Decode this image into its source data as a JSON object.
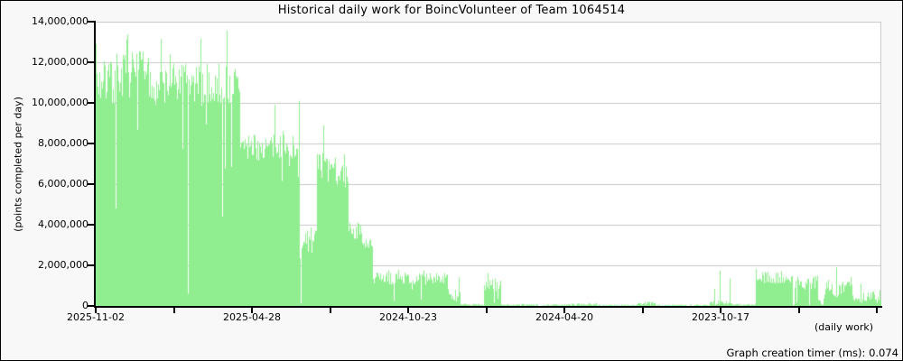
{
  "page": {
    "footer_timer": "Graph creation timer (ms): 0.074"
  },
  "chart_data": {
    "type": "bar",
    "title": "Historical daily work for BoincVolunteer of Team 1064514",
    "ylabel": "(points completed per day)",
    "xlabel": "(daily work)",
    "unit": "points completed per day",
    "ylim": [
      0,
      14000000
    ],
    "grid": true,
    "bar_color": "#90ee90",
    "grid_color": "#c8c8c8",
    "axis_color": "#000000",
    "plot_bg": "#ffffff",
    "outer_bg": "#f8f8f8",
    "x_direction": "reverse-chronological (newest date at left edge, one bar per day)",
    "x_tick_labels": [
      "2025-11-02",
      "2025-04-28",
      "2024-10-23",
      "2024-04-20",
      "2023-10-17"
    ],
    "x_tick_interval_days": 187,
    "y_ticks": [
      {
        "value": 14000000,
        "label": "14,000,000"
      },
      {
        "value": 12000000,
        "label": "12,000,000"
      },
      {
        "value": 10000000,
        "label": "10,000,000"
      },
      {
        "value": 8000000,
        "label": "8,000,000"
      },
      {
        "value": 6000000,
        "label": "6,000,000"
      },
      {
        "value": 4000000,
        "label": "4,000,000"
      },
      {
        "value": 2000000,
        "label": "2,000,000"
      },
      {
        "value": 0,
        "label": "0"
      }
    ],
    "n_points": 870,
    "seed": 7,
    "series_envelope_comment": "daily values summarized as segments [day_from, day_to, typical, spread, min, max] in points/day; day 0 = 2025-11-02 going back in time",
    "segments": [
      [
        0,
        21,
        11000000,
        1100000,
        8800000,
        13000000
      ],
      [
        22,
        54,
        11400000,
        1150000,
        7000000,
        13450000
      ],
      [
        55,
        159,
        10900000,
        1050000,
        6500000,
        13600000
      ],
      [
        160,
        224,
        7800000,
        650000,
        5500000,
        9400000
      ],
      [
        225,
        231,
        2800000,
        500000,
        2100000,
        3400000
      ],
      [
        232,
        244,
        3300000,
        700000,
        2200000,
        4600000
      ],
      [
        245,
        279,
        6700000,
        900000,
        4600000,
        8500000
      ],
      [
        280,
        294,
        3700000,
        450000,
        2950000,
        4450000
      ],
      [
        295,
        306,
        3000000,
        300000,
        2500000,
        3600000
      ],
      [
        307,
        389,
        1350000,
        300000,
        350000,
        1850000
      ],
      [
        390,
        403,
        550000,
        280000,
        60000,
        1000000
      ],
      [
        404,
        429,
        60000,
        50000,
        0,
        140000
      ],
      [
        430,
        448,
        1000000,
        350000,
        200000,
        1520000
      ],
      [
        449,
        532,
        50000,
        45000,
        0,
        150000
      ],
      [
        533,
        554,
        100000,
        80000,
        0,
        300000
      ],
      [
        555,
        599,
        40000,
        35000,
        0,
        110000
      ],
      [
        600,
        619,
        120000,
        90000,
        0,
        350000
      ],
      [
        620,
        679,
        40000,
        35000,
        0,
        100000
      ],
      [
        680,
        694,
        150000,
        120000,
        20000,
        500000
      ],
      [
        695,
        704,
        120000,
        90000,
        20000,
        400000
      ],
      [
        705,
        730,
        60000,
        50000,
        0,
        160000
      ],
      [
        731,
        771,
        1400000,
        280000,
        1000000,
        1880000
      ],
      [
        772,
        799,
        1150000,
        350000,
        0,
        1650000
      ],
      [
        800,
        806,
        180000,
        120000,
        20000,
        380000
      ],
      [
        807,
        829,
        850000,
        450000,
        250000,
        1750000
      ],
      [
        830,
        837,
        1200000,
        280000,
        750000,
        1550000
      ],
      [
        838,
        854,
        350000,
        200000,
        80000,
        750000
      ],
      [
        855,
        869,
        500000,
        280000,
        150000,
        950000
      ]
    ],
    "notable_points": [
      [
        0,
        12900000
      ],
      [
        22,
        4800000
      ],
      [
        72,
        13150000
      ],
      [
        102,
        600000
      ],
      [
        140,
        4400000
      ],
      [
        145,
        13550000
      ],
      [
        198,
        9900000
      ],
      [
        225,
        10100000
      ],
      [
        227,
        120000
      ],
      [
        252,
        8900000
      ],
      [
        330,
        250000
      ],
      [
        360,
        300000
      ],
      [
        402,
        1420000
      ],
      [
        434,
        1620000
      ],
      [
        441,
        150000
      ],
      [
        685,
        850000
      ],
      [
        691,
        1750000
      ],
      [
        702,
        1350000
      ],
      [
        772,
        0
      ],
      [
        773,
        60000
      ],
      [
        790,
        40000
      ],
      [
        820,
        1900000
      ],
      [
        847,
        1100000
      ]
    ]
  }
}
